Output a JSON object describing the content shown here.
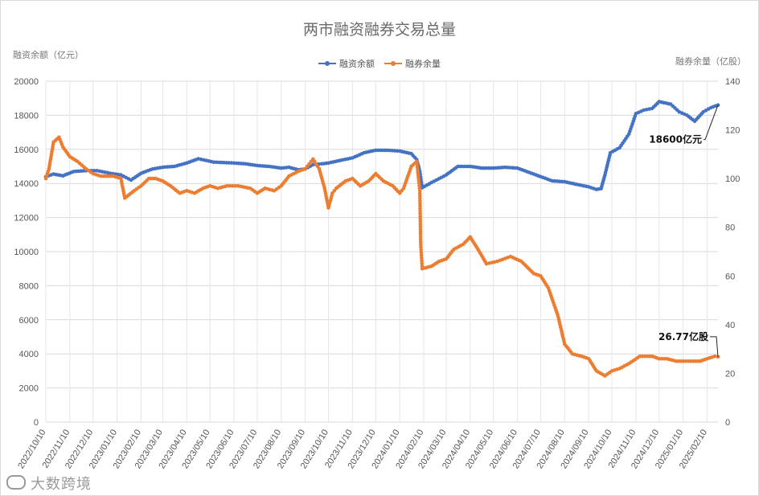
{
  "chart_data": {
    "type": "line",
    "title": "两市融资融券交易总量",
    "ylabel_left": "融资余额（亿元）",
    "ylabel_right": "融券余量（亿股）",
    "ylim_left": [
      0,
      20000
    ],
    "ylim_right": [
      0,
      140
    ],
    "yticks_left": [
      "0",
      "2000",
      "4000",
      "6000",
      "8000",
      "10000",
      "12000",
      "14000",
      "16000",
      "18000",
      "20000"
    ],
    "yticks_right": [
      "0",
      "20",
      "40",
      "60",
      "80",
      "100",
      "120",
      "140"
    ],
    "x_tick_labels": [
      "2022/10/10",
      "2022/11/10",
      "2022/12/10",
      "2023/01/10",
      "2023/02/10",
      "2023/03/10",
      "2023/04/10",
      "2023/05/10",
      "2023/06/10",
      "2023/07/10",
      "2023/08/10",
      "2023/09/10",
      "2023/10/10",
      "2023/11/10",
      "2023/12/10",
      "2024/01/10",
      "2024/02/10",
      "2024/03/10",
      "2024/04/10",
      "2024/05/10",
      "2024/06/10",
      "2024/07/10",
      "2024/08/10",
      "2024/09/10",
      "2024/10/10",
      "2024/11/10",
      "2024/12/10",
      "2025/01/10",
      "2025/02/10"
    ],
    "x_range": [
      "2022/10/10",
      "2025/02/24"
    ],
    "grid": true,
    "legend_position": "top-center",
    "series": [
      {
        "name": "融资余额",
        "axis": "left",
        "color": "#4472C4",
        "points": [
          [
            "2022/10/10",
            14400
          ],
          [
            "2022/10/20",
            14550
          ],
          [
            "2022/11/01",
            14450
          ],
          [
            "2022/11/15",
            14700
          ],
          [
            "2022/12/01",
            14750
          ],
          [
            "2022/12/15",
            14750
          ],
          [
            "2023/01/01",
            14600
          ],
          [
            "2023/01/15",
            14500
          ],
          [
            "2023/01/28",
            14200
          ],
          [
            "2023/02/10",
            14600
          ],
          [
            "2023/02/25",
            14850
          ],
          [
            "2023/03/10",
            14950
          ],
          [
            "2023/03/25",
            15000
          ],
          [
            "2023/04/10",
            15200
          ],
          [
            "2023/04/25",
            15450
          ],
          [
            "2023/05/05",
            15350
          ],
          [
            "2023/05/15",
            15250
          ],
          [
            "2023/06/10",
            15200
          ],
          [
            "2023/06/25",
            15150
          ],
          [
            "2023/07/10",
            15050
          ],
          [
            "2023/07/25",
            15000
          ],
          [
            "2023/08/10",
            14900
          ],
          [
            "2023/08/20",
            14950
          ],
          [
            "2023/09/01",
            14800
          ],
          [
            "2023/09/10",
            14850
          ],
          [
            "2023/09/20",
            15100
          ],
          [
            "2023/10/01",
            15150
          ],
          [
            "2023/10/10",
            15200
          ],
          [
            "2023/10/25",
            15350
          ],
          [
            "2023/11/10",
            15500
          ],
          [
            "2023/11/25",
            15800
          ],
          [
            "2023/12/10",
            15950
          ],
          [
            "2023/12/25",
            15950
          ],
          [
            "2024/01/10",
            15900
          ],
          [
            "2024/01/25",
            15750
          ],
          [
            "2024/02/01",
            15400
          ],
          [
            "2024/02/05",
            14700
          ],
          [
            "2024/02/08",
            13750
          ],
          [
            "2024/02/20",
            14050
          ],
          [
            "2024/03/10",
            14500
          ],
          [
            "2024/03/25",
            15000
          ],
          [
            "2024/04/10",
            15000
          ],
          [
            "2024/04/25",
            14900
          ],
          [
            "2024/05/10",
            14900
          ],
          [
            "2024/05/25",
            14950
          ],
          [
            "2024/06/10",
            14900
          ],
          [
            "2024/06/25",
            14650
          ],
          [
            "2024/07/10",
            14400
          ],
          [
            "2024/07/25",
            14150
          ],
          [
            "2024/08/10",
            14100
          ],
          [
            "2024/08/25",
            13950
          ],
          [
            "2024/09/10",
            13800
          ],
          [
            "2024/09/20",
            13650
          ],
          [
            "2024/09/26",
            13700
          ],
          [
            "2024/10/01",
            14500
          ],
          [
            "2024/10/08",
            15800
          ],
          [
            "2024/10/20",
            16100
          ],
          [
            "2024/11/01",
            16900
          ],
          [
            "2024/11/10",
            18100
          ],
          [
            "2024/11/20",
            18300
          ],
          [
            "2024/12/01",
            18400
          ],
          [
            "2024/12/10",
            18800
          ],
          [
            "2024/12/25",
            18650
          ],
          [
            "2025/01/05",
            18200
          ],
          [
            "2025/01/15",
            18000
          ],
          [
            "2025/01/25",
            17650
          ],
          [
            "2025/02/05",
            18200
          ],
          [
            "2025/02/15",
            18450
          ],
          [
            "2025/02/24",
            18600
          ]
        ]
      },
      {
        "name": "融券余量",
        "axis": "right",
        "color": "#ED7D31",
        "points": [
          [
            "2022/10/10",
            100
          ],
          [
            "2022/10/14",
            104
          ],
          [
            "2022/10/20",
            115
          ],
          [
            "2022/10/27",
            117
          ],
          [
            "2022/11/01",
            113
          ],
          [
            "2022/11/10",
            109
          ],
          [
            "2022/11/20",
            107
          ],
          [
            "2022/12/01",
            104
          ],
          [
            "2022/12/10",
            102
          ],
          [
            "2022/12/20",
            101
          ],
          [
            "2023/01/05",
            101
          ],
          [
            "2023/01/15",
            100
          ],
          [
            "2023/01/20",
            92
          ],
          [
            "2023/02/01",
            95
          ],
          [
            "2023/02/10",
            97
          ],
          [
            "2023/02/20",
            100
          ],
          [
            "2023/03/01",
            100
          ],
          [
            "2023/03/10",
            99
          ],
          [
            "2023/03/20",
            97
          ],
          [
            "2023/04/01",
            94
          ],
          [
            "2023/04/10",
            95
          ],
          [
            "2023/04/20",
            94
          ],
          [
            "2023/05/01",
            96
          ],
          [
            "2023/05/10",
            97
          ],
          [
            "2023/05/20",
            96
          ],
          [
            "2023/06/01",
            97
          ],
          [
            "2023/06/15",
            97
          ],
          [
            "2023/07/01",
            96
          ],
          [
            "2023/07/10",
            94
          ],
          [
            "2023/07/20",
            96
          ],
          [
            "2023/08/01",
            95
          ],
          [
            "2023/08/10",
            97
          ],
          [
            "2023/08/20",
            101
          ],
          [
            "2023/09/01",
            103
          ],
          [
            "2023/09/10",
            104
          ],
          [
            "2023/09/15",
            106
          ],
          [
            "2023/09/20",
            108
          ],
          [
            "2023/09/28",
            104
          ],
          [
            "2023/10/05",
            96
          ],
          [
            "2023/10/10",
            88
          ],
          [
            "2023/10/15",
            94
          ],
          [
            "2023/10/20",
            96
          ],
          [
            "2023/11/01",
            99
          ],
          [
            "2023/11/10",
            100
          ],
          [
            "2023/11/20",
            97
          ],
          [
            "2023/12/01",
            99
          ],
          [
            "2023/12/10",
            102
          ],
          [
            "2023/12/20",
            99
          ],
          [
            "2024/01/01",
            97
          ],
          [
            "2024/01/10",
            94
          ],
          [
            "2024/01/15",
            96
          ],
          [
            "2024/01/25",
            105
          ],
          [
            "2024/02/01",
            107
          ],
          [
            "2024/02/05",
            95
          ],
          [
            "2024/02/06",
            74
          ],
          [
            "2024/02/08",
            63
          ],
          [
            "2024/02/20",
            64
          ],
          [
            "2024/03/01",
            66
          ],
          [
            "2024/03/10",
            67
          ],
          [
            "2024/03/20",
            71
          ],
          [
            "2024/04/01",
            73
          ],
          [
            "2024/04/10",
            76
          ],
          [
            "2024/04/20",
            71
          ],
          [
            "2024/05/01",
            65
          ],
          [
            "2024/05/15",
            66
          ],
          [
            "2024/06/01",
            68
          ],
          [
            "2024/06/15",
            66
          ],
          [
            "2024/07/01",
            61
          ],
          [
            "2024/07/10",
            60
          ],
          [
            "2024/07/20",
            55
          ],
          [
            "2024/08/01",
            44
          ],
          [
            "2024/08/10",
            32
          ],
          [
            "2024/08/20",
            28
          ],
          [
            "2024/09/01",
            27
          ],
          [
            "2024/09/10",
            26
          ],
          [
            "2024/09/20",
            21
          ],
          [
            "2024/10/01",
            19
          ],
          [
            "2024/10/10",
            21
          ],
          [
            "2024/10/20",
            22
          ],
          [
            "2024/11/01",
            24
          ],
          [
            "2024/11/15",
            27
          ],
          [
            "2024/12/01",
            27
          ],
          [
            "2024/12/10",
            26
          ],
          [
            "2024/12/20",
            26
          ],
          [
            "2025/01/01",
            25
          ],
          [
            "2025/01/10",
            25
          ],
          [
            "2025/01/20",
            25
          ],
          [
            "2025/02/01",
            25
          ],
          [
            "2025/02/10",
            26
          ],
          [
            "2025/02/20",
            27
          ],
          [
            "2025/02/24",
            26.77
          ]
        ]
      }
    ],
    "annotations": [
      {
        "text": "18600亿元",
        "series": "融资余额",
        "at": "2025/02/24"
      },
      {
        "text": "26.77亿股",
        "series": "融券余量",
        "at": "2025/02/24"
      }
    ]
  },
  "watermark": "大数跨境"
}
